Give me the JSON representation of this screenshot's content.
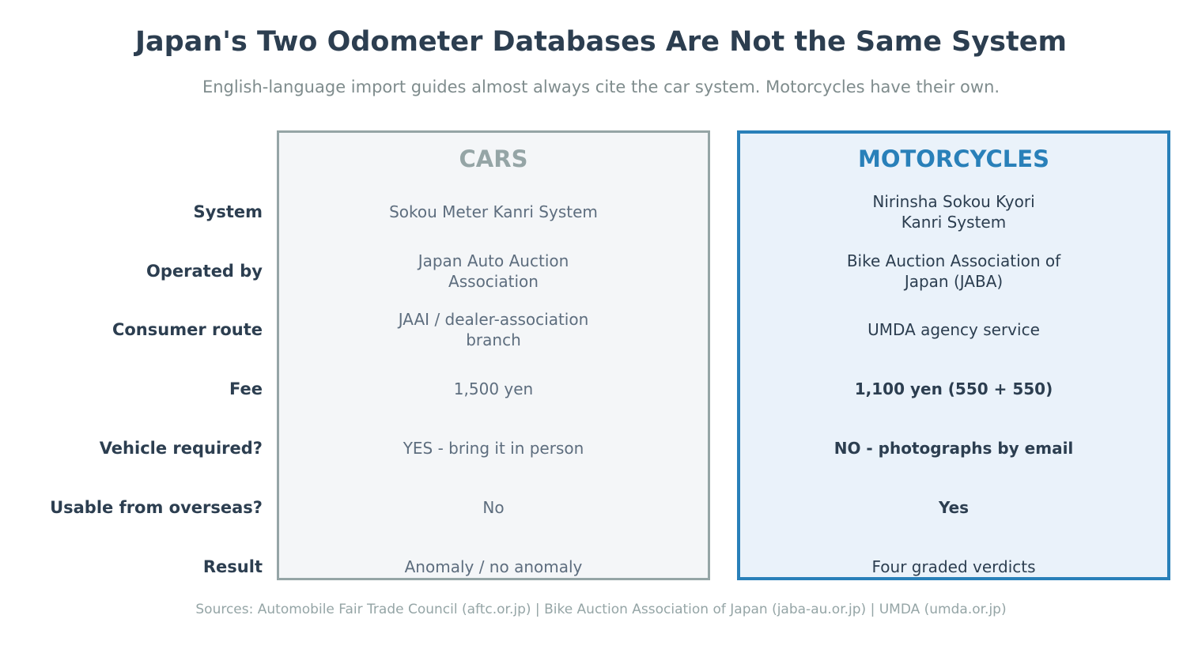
{
  "header": {
    "title": "Japan's Two Odometer Databases Are Not the Same System",
    "subtitle": "English-language import guides almost always cite the car system. Motorcycles have their own."
  },
  "columns": {
    "cars": "CARS",
    "motorcycles": "MOTORCYCLES"
  },
  "rows": [
    {
      "label": "System",
      "cars": "Sokou Meter Kanri System",
      "motorcycles": "Nirinsha Sokou Kyori Kanri System"
    },
    {
      "label": "Operated by",
      "cars": "Japan Auto Auction Association",
      "motorcycles": "Bike Auction Association of Japan (JABA)"
    },
    {
      "label": "Consumer route",
      "cars": "JAAI / dealer-association branch",
      "motorcycles": "UMDA agency service"
    },
    {
      "label": "Fee",
      "cars": "1,500 yen",
      "motorcycles": "1,100 yen (550 + 550)"
    },
    {
      "label": "Vehicle required?",
      "cars": "YES - bring it in person",
      "motorcycles": "NO - photographs by email"
    },
    {
      "label": "Usable from overseas?",
      "cars": "No",
      "motorcycles": "Yes"
    },
    {
      "label": "Result",
      "cars": "Anomaly / no anomaly",
      "motorcycles": "Four graded verdicts"
    }
  ],
  "sources": "Sources: Automobile Fair Trade Council (aftc.or.jp) | Bike Auction Association of Japan (jaba-au.or.jp) | UMDA (umda.or.jp)",
  "colors": {
    "title": "#2c3e50",
    "cars_accent": "#95a5a6",
    "cars_bg": "#f4f6f8",
    "motorcycles_accent": "#2980b9",
    "motorcycles_bg": "#eaf2fa",
    "subtitle": "#7f8c8d"
  }
}
